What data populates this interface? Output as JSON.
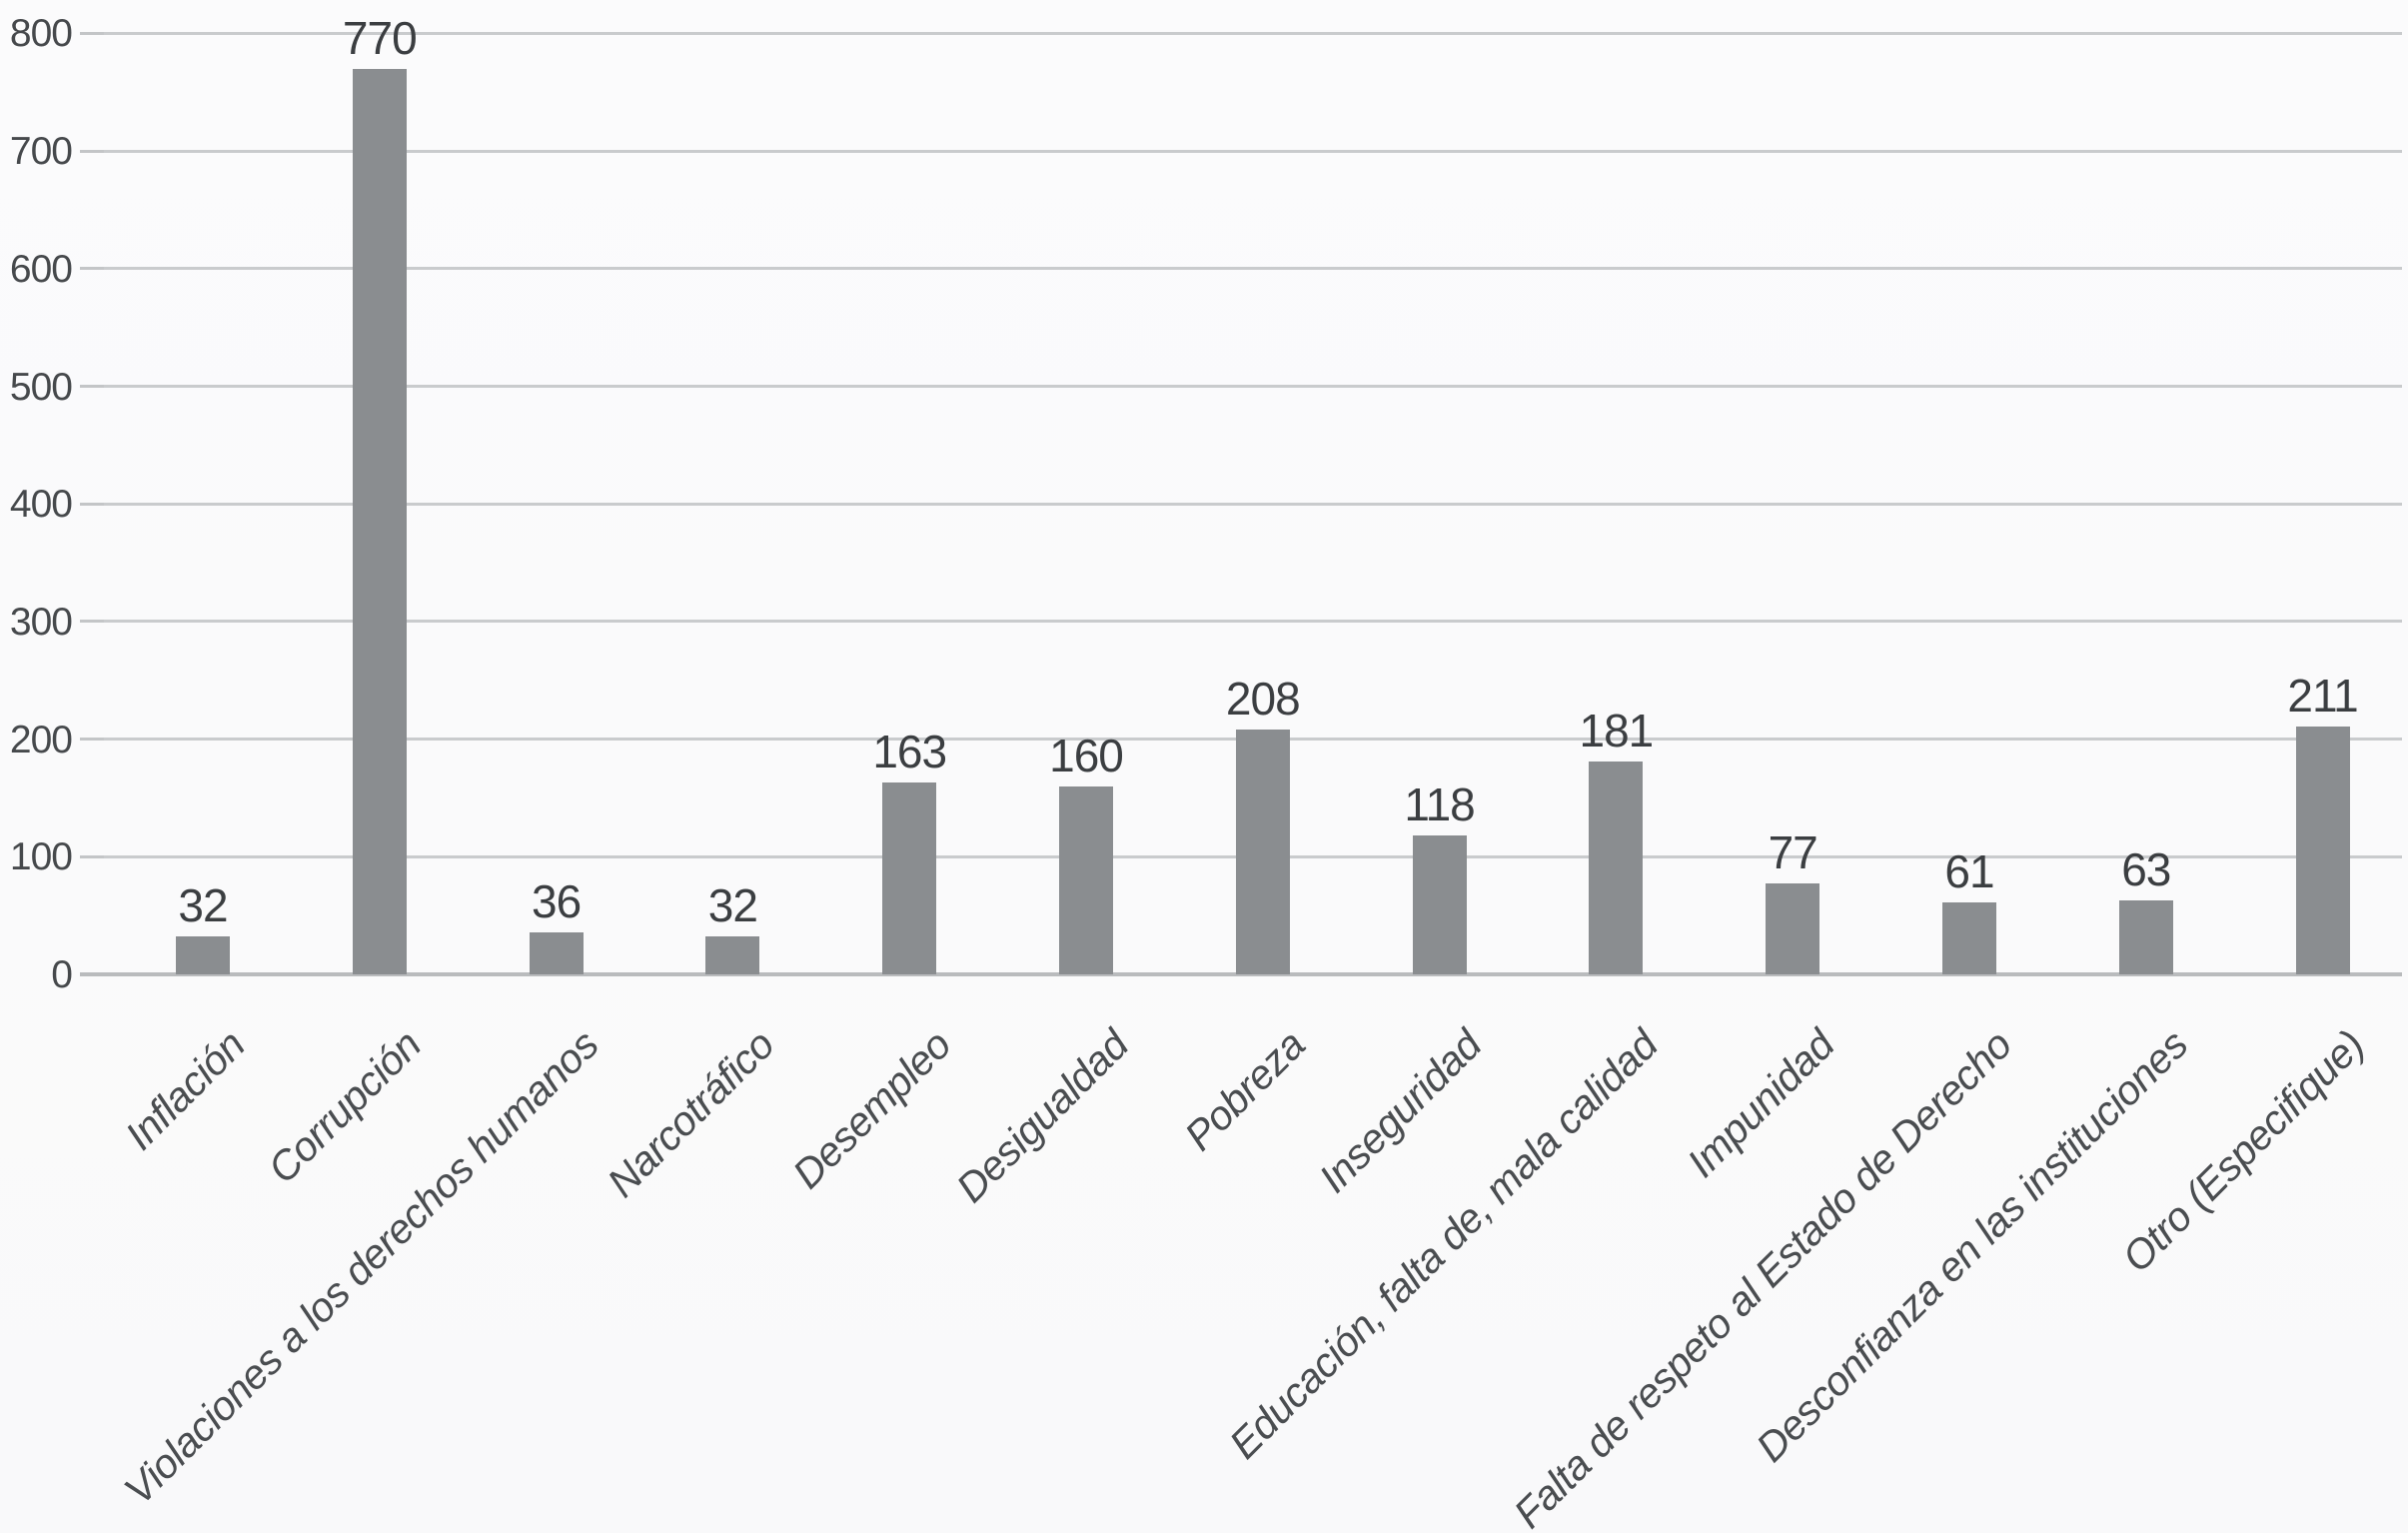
{
  "chart_data": {
    "type": "bar",
    "title": "",
    "xlabel": "",
    "ylabel": "",
    "categories": [
      "Inflación",
      "Corrupción",
      "Violaciones a los derechos humanos",
      "Narcotráfico",
      "Desempleo",
      "Desigualdad",
      "Pobreza",
      "Inseguridad",
      "Educación, falta de, mala calidad",
      "Impunidad",
      "Falta de respeto al Estado de Derecho",
      "Desconfianza en las instituciones",
      "Otro (Especifique)"
    ],
    "values": [
      32,
      770,
      36,
      32,
      163,
      160,
      208,
      118,
      181,
      77,
      61,
      63,
      211
    ],
    "data_labels": [
      "32",
      "770",
      "36",
      "32",
      "163",
      "160",
      "208",
      "118",
      "181",
      "77",
      "61",
      "63",
      "211"
    ],
    "ylim": [
      0,
      800
    ],
    "yticks": [
      "0",
      "100",
      "200",
      "300",
      "400",
      "500",
      "600",
      "700",
      "800"
    ],
    "grid": true,
    "legend": false,
    "bar_color": "#8a8d90",
    "gridline_color": "#c9cbcd",
    "text_color": "#46494c",
    "x_labels_rotation_deg": 45
  }
}
